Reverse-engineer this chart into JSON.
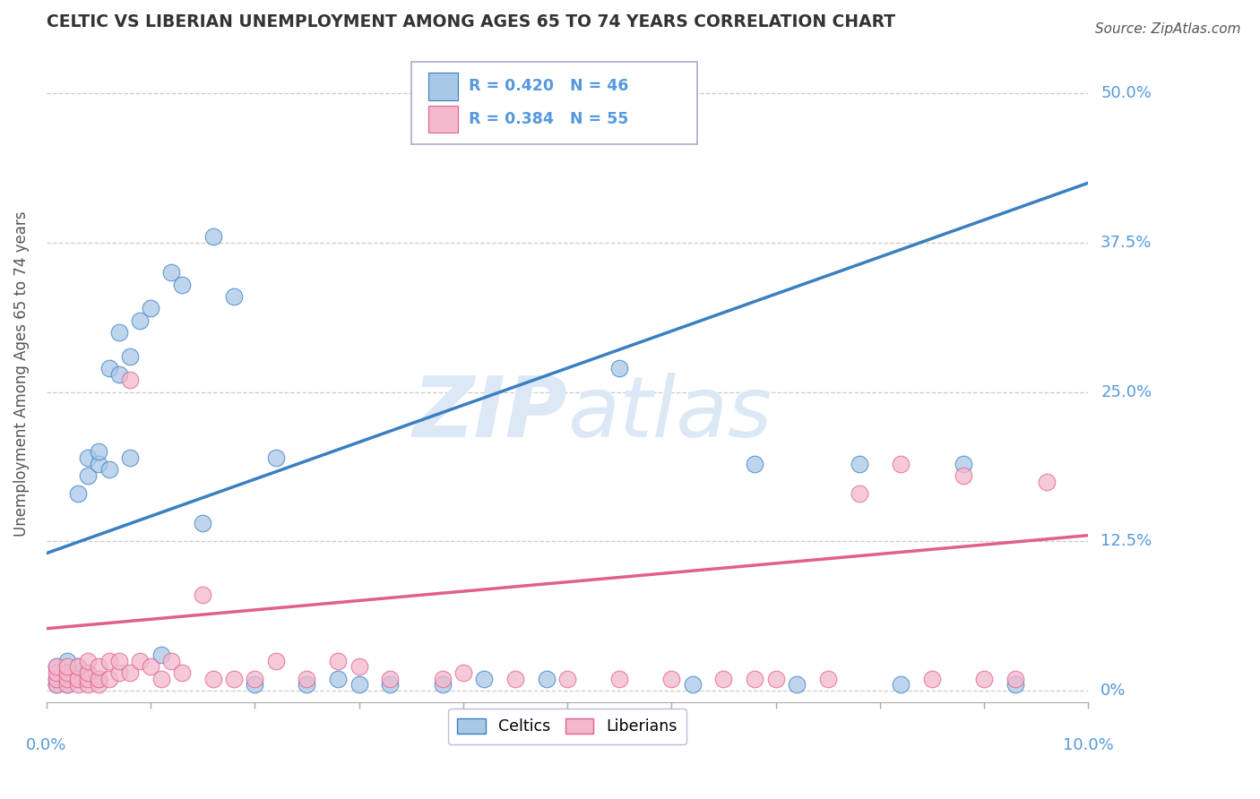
{
  "title": "CELTIC VS LIBERIAN UNEMPLOYMENT AMONG AGES 65 TO 74 YEARS CORRELATION CHART",
  "source": "Source: ZipAtlas.com",
  "ylabel": "Unemployment Among Ages 65 to 74 years",
  "ytick_labels": [
    "0%",
    "12.5%",
    "25.0%",
    "37.5%",
    "50.0%"
  ],
  "ytick_values": [
    0.0,
    0.125,
    0.25,
    0.375,
    0.5
  ],
  "xlim": [
    0.0,
    0.1
  ],
  "ylim": [
    -0.01,
    0.54
  ],
  "celtics_R": 0.42,
  "celtics_N": 46,
  "liberians_R": 0.384,
  "liberians_N": 55,
  "celtics_color": "#a8c8e8",
  "liberians_color": "#f4b8cc",
  "celtics_line_color": "#3a7fc1",
  "liberians_line_color": "#e0608a",
  "background_color": "#ffffff",
  "grid_color": "#cccccc",
  "axis_label_color": "#5599dd",
  "title_color": "#333333",
  "watermark_color": "#dce8f5",
  "celtics_x": [
    0.001,
    0.001,
    0.001,
    0.002,
    0.002,
    0.002,
    0.003,
    0.003,
    0.003,
    0.004,
    0.004,
    0.004,
    0.005,
    0.005,
    0.005,
    0.006,
    0.006,
    0.007,
    0.007,
    0.008,
    0.008,
    0.009,
    0.01,
    0.011,
    0.012,
    0.013,
    0.015,
    0.016,
    0.018,
    0.02,
    0.022,
    0.025,
    0.028,
    0.03,
    0.033,
    0.038,
    0.042,
    0.048,
    0.055,
    0.062,
    0.068,
    0.072,
    0.078,
    0.082,
    0.088,
    0.093
  ],
  "celtics_y": [
    0.005,
    0.01,
    0.02,
    0.005,
    0.015,
    0.025,
    0.01,
    0.02,
    0.165,
    0.015,
    0.18,
    0.195,
    0.01,
    0.19,
    0.2,
    0.185,
    0.27,
    0.265,
    0.3,
    0.195,
    0.28,
    0.31,
    0.32,
    0.03,
    0.35,
    0.34,
    0.14,
    0.38,
    0.33,
    0.005,
    0.195,
    0.005,
    0.01,
    0.005,
    0.005,
    0.005,
    0.01,
    0.01,
    0.27,
    0.005,
    0.19,
    0.005,
    0.19,
    0.005,
    0.19,
    0.005
  ],
  "liberians_x": [
    0.001,
    0.001,
    0.001,
    0.001,
    0.002,
    0.002,
    0.002,
    0.002,
    0.003,
    0.003,
    0.003,
    0.004,
    0.004,
    0.004,
    0.004,
    0.005,
    0.005,
    0.005,
    0.006,
    0.006,
    0.007,
    0.007,
    0.008,
    0.008,
    0.009,
    0.01,
    0.011,
    0.012,
    0.013,
    0.015,
    0.016,
    0.018,
    0.02,
    0.022,
    0.025,
    0.028,
    0.03,
    0.033,
    0.038,
    0.04,
    0.045,
    0.05,
    0.055,
    0.06,
    0.065,
    0.068,
    0.07,
    0.075,
    0.078,
    0.082,
    0.085,
    0.088,
    0.09,
    0.093,
    0.096
  ],
  "liberians_y": [
    0.005,
    0.01,
    0.015,
    0.02,
    0.005,
    0.01,
    0.015,
    0.02,
    0.005,
    0.01,
    0.02,
    0.005,
    0.01,
    0.015,
    0.025,
    0.005,
    0.01,
    0.02,
    0.01,
    0.025,
    0.015,
    0.025,
    0.015,
    0.26,
    0.025,
    0.02,
    0.01,
    0.025,
    0.015,
    0.08,
    0.01,
    0.01,
    0.01,
    0.025,
    0.01,
    0.025,
    0.02,
    0.01,
    0.01,
    0.015,
    0.01,
    0.01,
    0.01,
    0.01,
    0.01,
    0.01,
    0.01,
    0.01,
    0.165,
    0.19,
    0.01,
    0.18,
    0.01,
    0.01,
    0.175
  ],
  "blue_line_x": [
    0.0,
    0.1
  ],
  "blue_line_y": [
    0.115,
    0.425
  ],
  "pink_line_x": [
    0.0,
    0.1
  ],
  "pink_line_y": [
    0.052,
    0.13
  ]
}
